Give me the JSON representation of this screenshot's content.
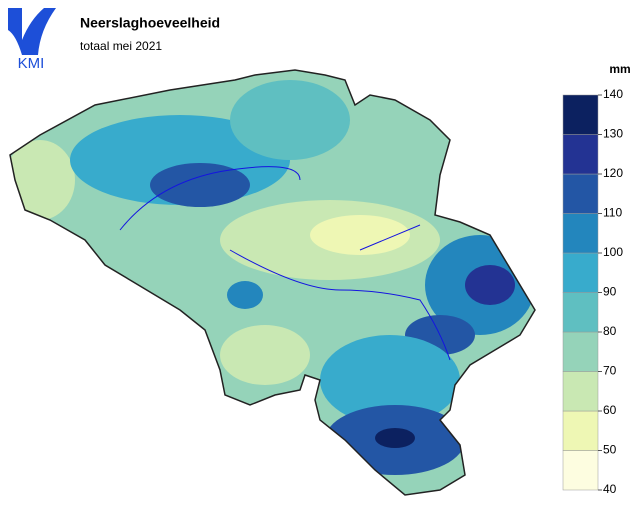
{
  "header": {
    "logo": "KMI",
    "title": "Neerslaghoeveelheid",
    "subtitle": "totaal mei 2021"
  },
  "legend": {
    "unit": "mm",
    "ticks": [
      40,
      50,
      60,
      70,
      80,
      90,
      100,
      110,
      120,
      130,
      140
    ],
    "colors": [
      "#fdfde0",
      "#eef7b4",
      "#c9e8b3",
      "#95d3b9",
      "#5fbfc1",
      "#38abcc",
      "#2386bd",
      "#2356a5",
      "#233393",
      "#0c2160"
    ]
  }
}
